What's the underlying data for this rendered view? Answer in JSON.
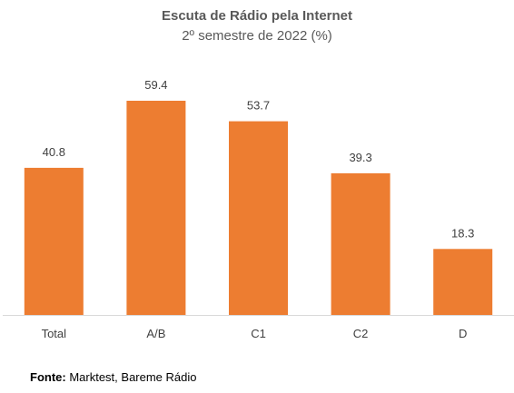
{
  "chart_data": {
    "type": "bar",
    "title": "Escuta de Rádio pela Internet",
    "subtitle": "2º semestre de 2022 (%)",
    "categories": [
      "Total",
      "A/B",
      "C1",
      "C2",
      "D"
    ],
    "values": [
      40.8,
      59.4,
      53.7,
      39.3,
      18.3
    ],
    "value_labels": [
      "40.8",
      "59.4",
      "53.7",
      "39.3",
      "18.3"
    ],
    "bar_color": "#ED7D31",
    "ylim": [
      0,
      70
    ],
    "grid": false
  },
  "source": {
    "label": "Fonte:",
    "text": " Marktest, Bareme Rádio"
  }
}
